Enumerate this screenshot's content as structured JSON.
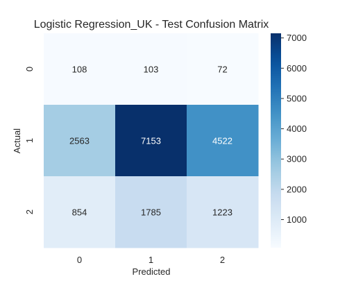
{
  "chart_data": {
    "type": "heatmap",
    "title": "Logistic Regression_UK - Test Confusion Matrix",
    "xlabel": "Predicted",
    "ylabel": "Actual",
    "x_categories": [
      "0",
      "1",
      "2"
    ],
    "y_categories": [
      "0",
      "1",
      "2"
    ],
    "values": [
      [
        108,
        103,
        72
      ],
      [
        2563,
        7153,
        4522
      ],
      [
        854,
        1785,
        1223
      ]
    ],
    "colormap": "Blues",
    "colorbar": {
      "range": [
        72,
        7153
      ],
      "ticks": [
        1000,
        2000,
        3000,
        4000,
        5000,
        6000,
        7000
      ]
    },
    "colors": {
      "low": "#f7fbff",
      "high": "#08306b",
      "dark_text": "#262626",
      "light_text": "#ffffff"
    }
  }
}
